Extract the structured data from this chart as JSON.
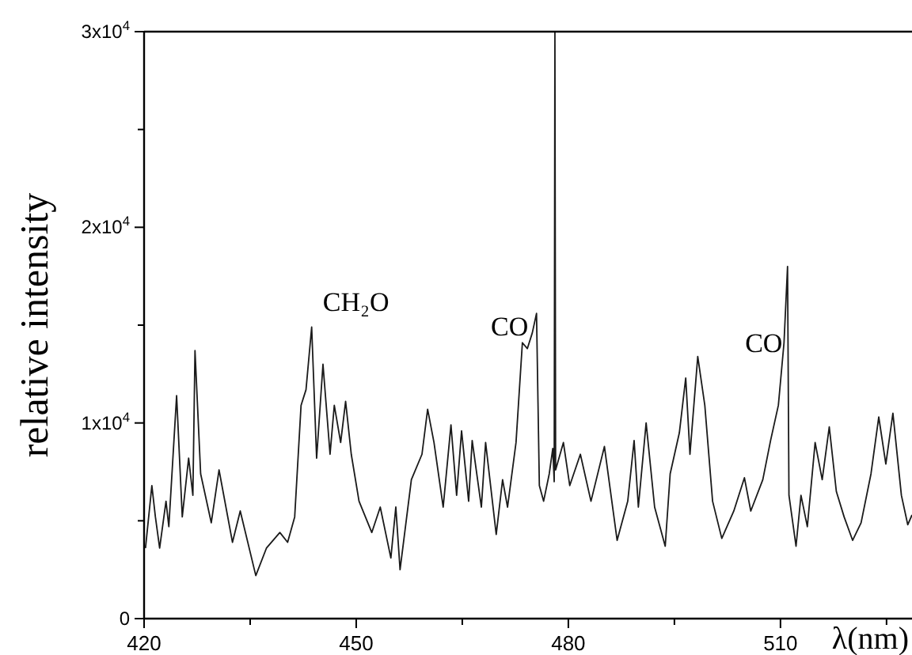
{
  "chart_data": {
    "type": "line",
    "xlabel": "λ(nm)",
    "ylabel": "relative intensity",
    "xlim": [
      420,
      528.6
    ],
    "ylim": [
      0,
      30000
    ],
    "xticks": [
      420,
      {
        "value": 435,
        "label": null
      },
      450,
      {
        "value": 465,
        "label": null
      },
      480,
      {
        "value": 495,
        "label": null
      },
      510,
      {
        "value": 525,
        "label": null
      }
    ],
    "yticks": [
      0,
      {
        "value": 5000,
        "label": null
      },
      {
        "value": 10000,
        "label": "1x10$^{4}$"
      },
      {
        "value": 15000,
        "label": null
      },
      {
        "value": 20000,
        "label": "2x10$^{4}$"
      },
      {
        "value": 25000,
        "label": null
      },
      {
        "value": 30000,
        "label": "3x10$^{4}$"
      }
    ],
    "grid": false,
    "marker": "none",
    "line_style": "solid",
    "annotations": [
      {
        "text": "CH₂O",
        "x": 443.7,
        "y": 14900
      },
      {
        "text": "CO",
        "x": 475.5,
        "y": 15600
      },
      {
        "text": "CO",
        "x": 511.0,
        "y": 18000
      }
    ],
    "series": [
      {
        "color": "#1a1a1a",
        "x": [
          420.2,
          421.1,
          421.6,
          422.2,
          423.1,
          423.5,
          424.6,
          425.4,
          426.3,
          426.9,
          427.2,
          428.0,
          429.5,
          430.6,
          432.5,
          433.6,
          435.8,
          437.3,
          439.2,
          440.3,
          441.3,
          442.2,
          442.9,
          443.7,
          444.4,
          445.3,
          446.3,
          446.9,
          447.8,
          448.5,
          449.3,
          450.4,
          452.2,
          453.4,
          454.9,
          455.6,
          456.2,
          457.8,
          459.3,
          460.1,
          461.0,
          462.3,
          463.4,
          464.2,
          464.9,
          465.9,
          466.4,
          467.7,
          468.3,
          469.8,
          470.7,
          471.4,
          472.6,
          473.5,
          474.2,
          474.9,
          475.5,
          475.9,
          476.5,
          477.3,
          477.8,
          478.0,
          478.1,
          478.2,
          479.3,
          480.2,
          481.7,
          483.2,
          485.1,
          486.9,
          488.4,
          489.3,
          489.9,
          491.0,
          492.2,
          493.7,
          494.4,
          495.7,
          496.6,
          497.2,
          498.3,
          499.3,
          500.4,
          501.7,
          503.4,
          504.9,
          505.8,
          507.5,
          508.6,
          509.7,
          510.5,
          511.0,
          511.2,
          512.2,
          512.9,
          513.8,
          514.9,
          515.9,
          516.9,
          517.9,
          519.0,
          520.2,
          521.4,
          522.8,
          523.9,
          524.9,
          525.9,
          527.1,
          528.0,
          528.6
        ],
        "values": [
          3600,
          6800,
          5200,
          3600,
          6000,
          4700,
          11400,
          5200,
          8200,
          6300,
          13700,
          7400,
          4900,
          7600,
          3900,
          5500,
          2200,
          3600,
          4400,
          3900,
          5200,
          10900,
          11700,
          14900,
          8200,
          13000,
          8400,
          10900,
          9000,
          11100,
          8400,
          6000,
          4400,
          5700,
          3100,
          5700,
          2500,
          7100,
          8400,
          10700,
          9000,
          5700,
          9900,
          6300,
          9600,
          6000,
          9100,
          5700,
          9000,
          4300,
          7100,
          5700,
          9000,
          14100,
          13800,
          14600,
          15600,
          6800,
          6000,
          7400,
          8700,
          7000,
          30000,
          7600,
          9000,
          6800,
          8400,
          6000,
          8800,
          4000,
          6000,
          9100,
          5700,
          10000,
          5700,
          3700,
          7400,
          9500,
          12300,
          8400,
          13400,
          10900,
          6000,
          4100,
          5500,
          7200,
          5500,
          7100,
          9100,
          10900,
          14100,
          18000,
          6300,
          3700,
          6300,
          4700,
          9000,
          7100,
          9800,
          6500,
          5200,
          4000,
          4900,
          7400,
          10300,
          7900,
          10500,
          6300,
          4800,
          5300
        ]
      }
    ]
  }
}
